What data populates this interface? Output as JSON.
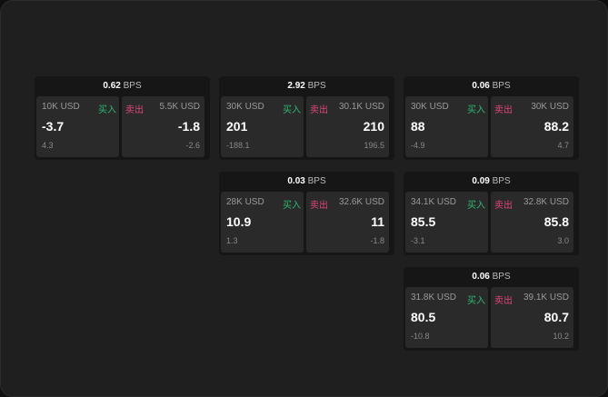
{
  "unit": "BPS",
  "buy_label": "买入",
  "sell_label": "卖出",
  "colors": {
    "buy": "#2eb872",
    "sell": "#e0457b"
  },
  "panels": [
    {
      "spread": "0.62",
      "buy": {
        "size": "10K USD",
        "price": "-3.7",
        "change": "4.3"
      },
      "sell": {
        "size": "5.5K USD",
        "price": "-1.8",
        "change": "-2.6"
      }
    },
    {
      "spread": "2.92",
      "buy": {
        "size": "30K USD",
        "price": "201",
        "change": "-188.1"
      },
      "sell": {
        "size": "30.1K USD",
        "price": "210",
        "change": "196.5"
      }
    },
    {
      "spread": "0.06",
      "buy": {
        "size": "30K USD",
        "price": "88",
        "change": "-4.9"
      },
      "sell": {
        "size": "30K USD",
        "price": "88.2",
        "change": "4.7"
      }
    },
    {
      "spread": "0.03",
      "buy": {
        "size": "28K USD",
        "price": "10.9",
        "change": "1.3"
      },
      "sell": {
        "size": "32.6K USD",
        "price": "11",
        "change": "-1.8"
      }
    },
    {
      "spread": "0.09",
      "buy": {
        "size": "34.1K USD",
        "price": "85.5",
        "change": "-3.1"
      },
      "sell": {
        "size": "32.8K USD",
        "price": "85.8",
        "change": "3.0"
      }
    },
    {
      "spread": "0.06",
      "buy": {
        "size": "31.8K USD",
        "price": "80.5",
        "change": "-10.8"
      },
      "sell": {
        "size": "39.1K USD",
        "price": "80.7",
        "change": "10.2"
      }
    }
  ]
}
